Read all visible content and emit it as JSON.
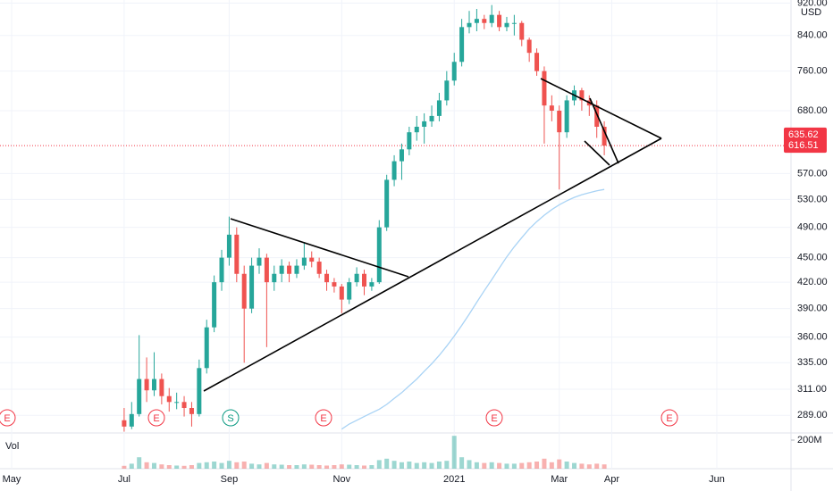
{
  "chart_data": {
    "type": "candlestick",
    "categories": [
      "May",
      null,
      null,
      null,
      null,
      null,
      null,
      null,
      null,
      null,
      null,
      null,
      null,
      null,
      null,
      "Jul",
      null,
      null,
      null,
      null,
      null,
      null,
      null,
      null,
      null,
      null,
      null,
      null,
      null,
      "Sep",
      null,
      null,
      null,
      null,
      null,
      null,
      null,
      null,
      null,
      null,
      null,
      null,
      null,
      null,
      "Nov",
      null,
      null,
      null,
      null,
      null,
      null,
      null,
      null,
      null,
      null,
      null,
      null,
      null,
      null,
      "2021",
      null,
      null,
      null,
      null,
      null,
      null,
      null,
      null,
      null,
      null,
      null,
      null,
      null,
      "Mar",
      null,
      null,
      null,
      null,
      null,
      null,
      "Apr",
      null,
      null,
      null,
      null,
      null,
      null,
      null,
      null,
      null,
      null,
      null,
      null,
      null,
      "Jun"
    ],
    "open": [
      null,
      null,
      null,
      null,
      null,
      null,
      null,
      null,
      null,
      null,
      null,
      null,
      null,
      null,
      null,
      285,
      280,
      290,
      320,
      310,
      320,
      305,
      300,
      300,
      295,
      290,
      330,
      370,
      420,
      450,
      480,
      430,
      390,
      440,
      450,
      420,
      430,
      440,
      430,
      440,
      450,
      445,
      430,
      420,
      415,
      400,
      420,
      430,
      415,
      420,
      490,
      560,
      590,
      610,
      640,
      650,
      660,
      670,
      700,
      740,
      780,
      860,
      870,
      880,
      870,
      890,
      860,
      870,
      870,
      830,
      800,
      760,
      690,
      680,
      640,
      700,
      720,
      700,
      690,
      650,
      null,
      null,
      null,
      null,
      null,
      null,
      null,
      null,
      null,
      null,
      null,
      null,
      null,
      null,
      null
    ],
    "high": [
      null,
      null,
      null,
      null,
      null,
      null,
      null,
      null,
      null,
      null,
      null,
      null,
      null,
      null,
      null,
      295,
      300,
      362,
      340,
      345,
      325,
      312,
      308,
      305,
      300,
      338,
      378,
      428,
      460,
      505,
      490,
      440,
      450,
      462,
      455,
      440,
      448,
      445,
      448,
      470,
      458,
      450,
      435,
      425,
      418,
      425,
      438,
      435,
      425,
      500,
      568,
      600,
      620,
      650,
      670,
      675,
      690,
      715,
      760,
      800,
      880,
      900,
      905,
      890,
      915,
      900,
      885,
      890,
      875,
      835,
      810,
      770,
      710,
      690,
      710,
      730,
      725,
      710,
      700,
      660,
      null,
      null,
      null,
      null,
      null,
      null,
      null,
      null,
      null,
      null,
      null,
      null,
      null,
      null,
      null
    ],
    "low": [
      null,
      null,
      null,
      null,
      null,
      null,
      null,
      null,
      null,
      null,
      null,
      null,
      null,
      null,
      null,
      276,
      278,
      288,
      300,
      305,
      298,
      292,
      294,
      288,
      280,
      288,
      325,
      365,
      410,
      440,
      420,
      335,
      385,
      430,
      350,
      410,
      420,
      420,
      425,
      435,
      438,
      425,
      410,
      408,
      385,
      395,
      415,
      405,
      410,
      418,
      485,
      550,
      560,
      600,
      625,
      620,
      650,
      660,
      690,
      730,
      770,
      845,
      850,
      855,
      860,
      850,
      850,
      840,
      815,
      780,
      750,
      620,
      660,
      545,
      630,
      690,
      680,
      670,
      630,
      600,
      null,
      null,
      null,
      null,
      null,
      null,
      null,
      null,
      null,
      null,
      null,
      null,
      null,
      null,
      null
    ],
    "close": [
      null,
      null,
      null,
      null,
      null,
      null,
      null,
      null,
      null,
      null,
      null,
      null,
      null,
      null,
      null,
      280,
      290,
      320,
      310,
      320,
      305,
      300,
      300,
      295,
      290,
      330,
      370,
      420,
      450,
      480,
      430,
      390,
      440,
      450,
      420,
      430,
      440,
      430,
      440,
      450,
      445,
      430,
      420,
      415,
      400,
      420,
      430,
      415,
      420,
      490,
      560,
      590,
      610,
      640,
      650,
      660,
      670,
      700,
      740,
      780,
      860,
      870,
      880,
      870,
      890,
      860,
      870,
      870,
      830,
      800,
      760,
      690,
      680,
      640,
      700,
      720,
      700,
      690,
      650,
      616.51,
      null,
      null,
      null,
      null,
      null,
      null,
      null,
      null,
      null,
      null,
      null,
      null,
      null,
      null,
      null
    ],
    "ma": [
      null,
      null,
      null,
      null,
      null,
      null,
      null,
      null,
      null,
      null,
      null,
      null,
      null,
      null,
      null,
      null,
      null,
      null,
      null,
      null,
      null,
      null,
      null,
      null,
      null,
      null,
      null,
      null,
      null,
      null,
      null,
      null,
      null,
      null,
      null,
      null,
      null,
      null,
      null,
      null,
      null,
      null,
      null,
      null,
      278,
      282,
      285,
      288,
      291,
      294,
      298,
      303,
      308,
      314,
      320,
      327,
      334,
      342,
      351,
      361,
      372,
      384,
      397,
      410,
      423,
      437,
      451,
      464,
      476,
      488,
      498,
      507,
      515,
      522,
      528,
      533,
      537,
      540,
      543,
      545,
      null,
      null,
      null,
      null,
      null,
      null,
      null,
      null,
      null,
      null,
      null,
      null,
      null,
      null,
      null
    ],
    "volume": [
      null,
      null,
      null,
      null,
      null,
      null,
      null,
      null,
      null,
      null,
      null,
      null,
      null,
      null,
      null,
      20000000,
      35000000,
      80000000,
      45000000,
      40000000,
      30000000,
      25000000,
      22000000,
      20000000,
      25000000,
      40000000,
      45000000,
      50000000,
      40000000,
      55000000,
      45000000,
      50000000,
      35000000,
      30000000,
      40000000,
      30000000,
      28000000,
      25000000,
      25000000,
      30000000,
      28000000,
      25000000,
      22000000,
      25000000,
      30000000,
      28000000,
      25000000,
      22000000,
      25000000,
      60000000,
      70000000,
      55000000,
      45000000,
      50000000,
      40000000,
      45000000,
      40000000,
      50000000,
      55000000,
      230000000,
      80000000,
      60000000,
      45000000,
      40000000,
      45000000,
      40000000,
      35000000,
      35000000,
      40000000,
      45000000,
      50000000,
      70000000,
      45000000,
      65000000,
      50000000,
      40000000,
      35000000,
      30000000,
      35000000,
      30000000,
      null,
      null,
      null,
      null,
      null,
      null,
      null,
      null,
      null,
      null,
      null,
      null,
      null,
      null,
      null
    ],
    "up_color": "#26a69a",
    "down_color": "#ef5350",
    "ma_color": "#a9d3f5",
    "log_scale": true,
    "grid": true,
    "ylim": [
      275,
      928
    ],
    "yticks": [
      {
        "value": 289,
        "label": "289.00"
      },
      {
        "value": 311,
        "label": "311.00"
      },
      {
        "value": 335,
        "label": "335.00"
      },
      {
        "value": 360,
        "label": "360.00"
      },
      {
        "value": 390,
        "label": "390.00"
      },
      {
        "value": 420,
        "label": "420.00"
      },
      {
        "value": 450,
        "label": "450.00"
      },
      {
        "value": 490,
        "label": "490.00"
      },
      {
        "value": 530,
        "label": "530.00"
      },
      {
        "value": 570,
        "label": "570.00"
      },
      {
        "value": 680,
        "label": "680.00"
      },
      {
        "value": 760,
        "label": "760.00"
      },
      {
        "value": 840,
        "label": "840.00"
      },
      {
        "value": 920,
        "label": "920.00"
      }
    ],
    "price_tags": [
      635.62,
      616.51
    ],
    "price_tag_color": "#f23645",
    "currency": "USD",
    "volume_label": "Vol",
    "vol_ylim": [
      0,
      250000000
    ],
    "vol_yticks": [
      {
        "value": 200000000,
        "label": "200M"
      }
    ],
    "events": [
      "E",
      "E",
      "S",
      "E",
      "E",
      "E"
    ],
    "event_colors": {
      "E": "#f23645",
      "S": "#089981"
    }
  }
}
